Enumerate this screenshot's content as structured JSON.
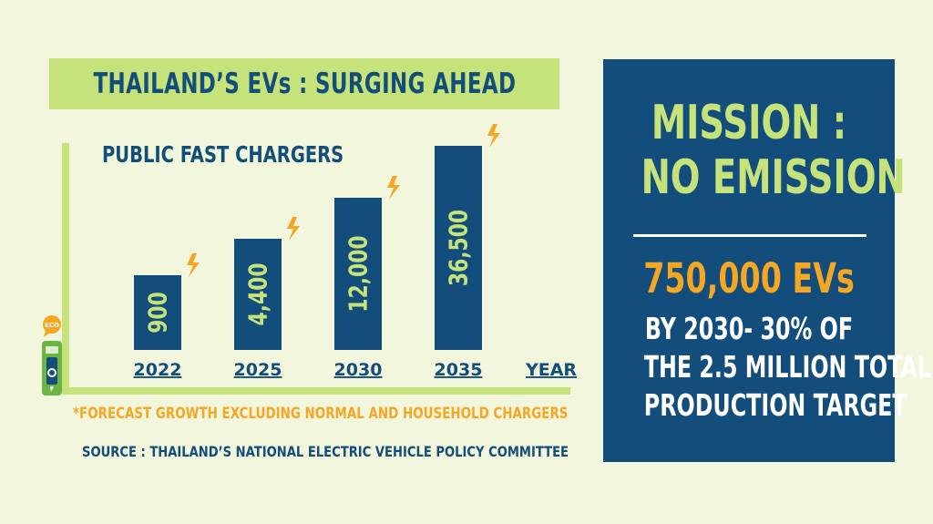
{
  "header": {
    "title": "THAILAND’S EVs : SURGING AHEAD"
  },
  "chart_data": {
    "type": "bar",
    "title": "PUBLIC FAST CHARGERS",
    "xlabel": "YEAR",
    "ylabel": "",
    "categories": [
      "2022",
      "2025",
      "2030",
      "2035"
    ],
    "values": [
      900,
      4400,
      12000,
      36500
    ],
    "value_labels": [
      "900",
      "4,400",
      "12,000",
      "36,500"
    ],
    "bar_color": "#124d7c",
    "value_label_color": "#c6e27a",
    "axis_color": "#c6e27a",
    "note": "Bar heights are not to scale",
    "icons": [
      "lightning-bolt-icon",
      "eco-badge-icon",
      "ev-charger-icon"
    ]
  },
  "footnote": "*FORECAST GROWTH EXCLUDING NORMAL AND HOUSEHOLD CHARGERS",
  "source": "SOURCE : THAILAND’S NATIONAL ELECTRIC VEHICLE POLICY COMMITTEE",
  "mission": {
    "heading_line1": "MISSION :",
    "heading_line2": "NO EMISSION",
    "evs": "750,000 EVs",
    "detail_line1": "BY 2030- 30% OF",
    "detail_line2": "THE 2.5 MILLION TOTAL",
    "detail_line3": "PRODUCTION TARGET"
  },
  "eco_badge": {
    "label": "ECO"
  },
  "colors": {
    "background": "#f1f6dc",
    "navy": "#124d7c",
    "lime": "#c6e27a",
    "orange": "#f5a623"
  }
}
